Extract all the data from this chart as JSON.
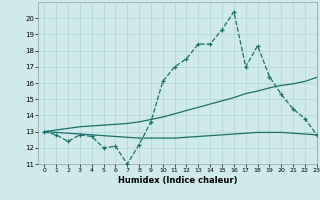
{
  "xlabel": "Humidex (Indice chaleur)",
  "bg_color": "#ceeaea",
  "grid_color": "#b8d8d8",
  "line_color": "#1a6e6a",
  "x": [
    0,
    1,
    2,
    3,
    4,
    5,
    6,
    7,
    8,
    9,
    10,
    11,
    12,
    13,
    14,
    15,
    16,
    17,
    18,
    19,
    20,
    21,
    22,
    23
  ],
  "y_main": [
    13.0,
    12.8,
    12.4,
    12.8,
    12.7,
    12.0,
    12.1,
    11.0,
    12.2,
    13.6,
    16.1,
    17.0,
    17.5,
    18.4,
    18.4,
    19.3,
    20.4,
    17.0,
    18.3,
    16.4,
    15.3,
    14.4,
    13.8,
    12.8
  ],
  "y_upper": [
    13.0,
    13.1,
    13.2,
    13.3,
    13.35,
    13.4,
    13.45,
    13.5,
    13.6,
    13.75,
    13.9,
    14.1,
    14.3,
    14.5,
    14.7,
    14.9,
    15.1,
    15.35,
    15.5,
    15.7,
    15.85,
    15.95,
    16.1,
    16.35
  ],
  "y_lower": [
    13.0,
    12.95,
    12.9,
    12.85,
    12.8,
    12.75,
    12.7,
    12.65,
    12.6,
    12.6,
    12.6,
    12.6,
    12.65,
    12.7,
    12.75,
    12.8,
    12.85,
    12.9,
    12.95,
    12.95,
    12.95,
    12.9,
    12.85,
    12.8
  ],
  "ylim": [
    11,
    21
  ],
  "xlim": [
    -0.5,
    23
  ],
  "yticks": [
    11,
    12,
    13,
    14,
    15,
    16,
    17,
    18,
    19,
    20
  ],
  "xticks": [
    0,
    1,
    2,
    3,
    4,
    5,
    6,
    7,
    8,
    9,
    10,
    11,
    12,
    13,
    14,
    15,
    16,
    17,
    18,
    19,
    20,
    21,
    22,
    23
  ]
}
